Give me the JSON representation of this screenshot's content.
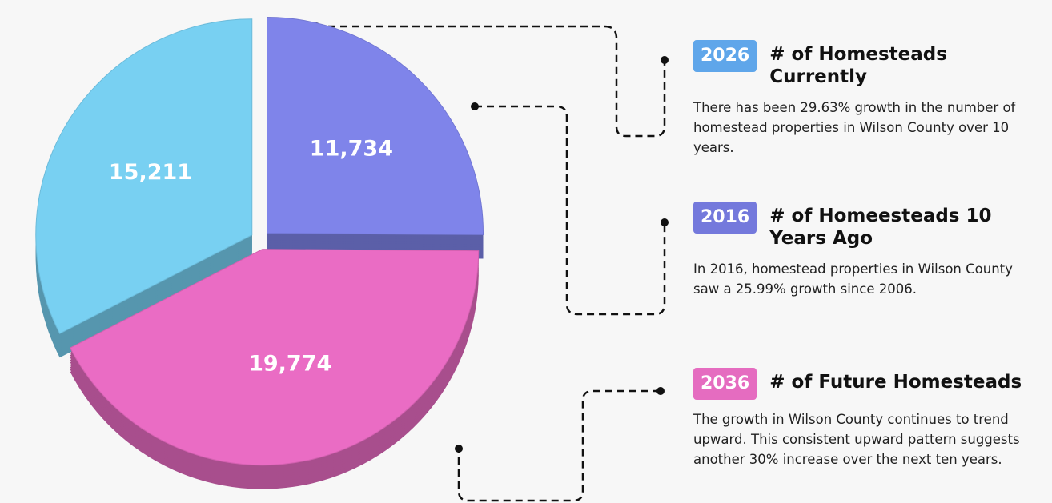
{
  "chart_data": {
    "type": "pie",
    "values": [
      11734,
      19774,
      15211
    ],
    "value_labels": [
      "11,734",
      "19,774",
      "15,211"
    ],
    "colors": [
      "#7f84ea",
      "#ea6cc4",
      "#78d0f2"
    ]
  },
  "callouts": [
    {
      "badge": "2026",
      "title": "# of Homesteads Currently",
      "text": "There has been 29.63% growth in the number of homestead properties in Wilson County over 10 years.",
      "color": "#5fa6ea"
    },
    {
      "badge": "2016",
      "title": "# of Homeesteads 10 Years Ago",
      "text": "In 2016, homestead properties in Wilson County saw a 25.99% growth since 2006.",
      "color": "#7479dc"
    },
    {
      "badge": "2036",
      "title": "# of Future Homesteads",
      "text": "The growth in Wilson County continues to trend upward. This consistent upward pattern suggests another 30% increase over the next ten years.",
      "color": "#e56cc0"
    }
  ]
}
